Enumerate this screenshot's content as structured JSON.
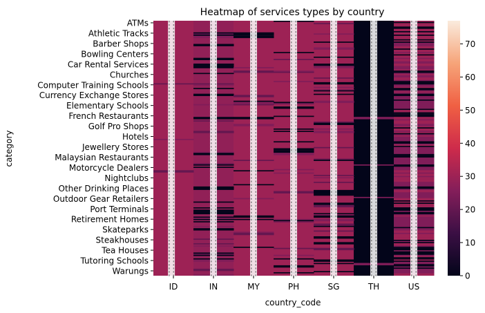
{
  "chart_data": {
    "type": "heatmap",
    "title": "Heatmap of services types by country",
    "xlabel": "country_code",
    "ylabel": "category",
    "x": [
      "ID",
      "IN",
      "MY",
      "PH",
      "SG",
      "TH",
      "US"
    ],
    "y_tick_labels": [
      "ATMs",
      "Athletic Tracks",
      "Barber Shops",
      "Bowling Centers",
      "Car Rental Services",
      "Churches",
      "Computer Training Schools",
      "Currency Exchange Stores",
      "Elementary Schools",
      "French Restaurants",
      "Golf Pro Shops",
      "Hotels",
      "Jewellery Stores",
      "Malaysian Restaurants",
      "Motorcycle Dealers",
      "Nightclubs",
      "Other Drinking Places",
      "Outdoor Gear Retailers",
      "Port Terminals",
      "Retirement Homes",
      "Skateparks",
      "Steakhouses",
      "Tea Houses",
      "Tutoring Schools",
      "Warungs"
    ],
    "typical_value_by_country": {
      "ID": 30,
      "IN": 28,
      "MY": 30,
      "PH": 30,
      "SG": 30,
      "TH": 0,
      "US": 25
    },
    "colorbar": {
      "min": 0,
      "max": 77,
      "ticks": [
        0,
        10,
        20,
        30,
        40,
        50,
        60,
        70
      ],
      "colors": [
        "#03051a",
        "#3b0f44",
        "#841e5a",
        "#ce2b4b",
        "#f06043",
        "#f6a479",
        "#faebdd"
      ]
    },
    "annotations_visible": true
  }
}
